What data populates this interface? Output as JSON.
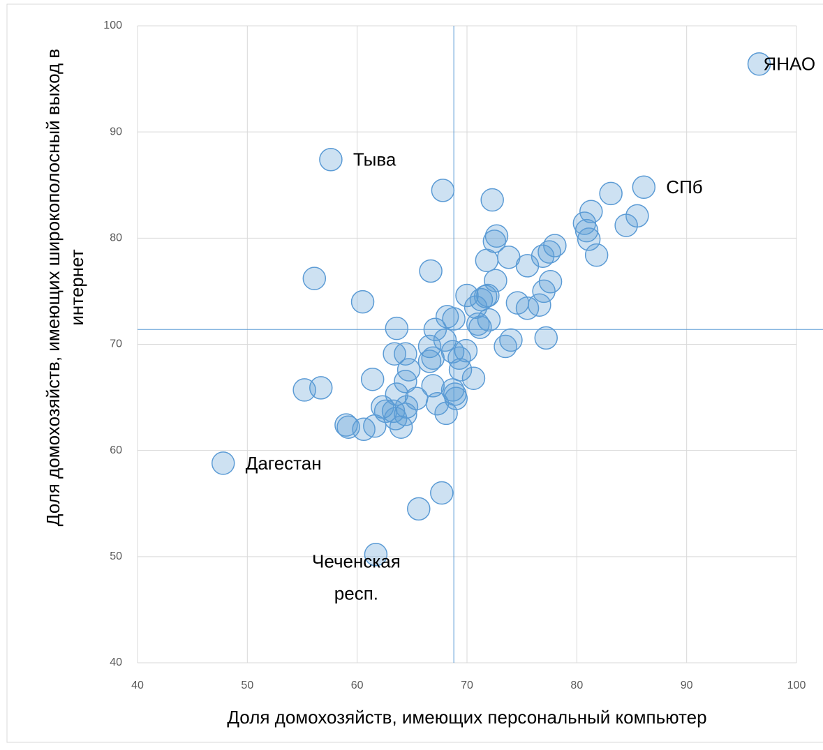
{
  "chart_data": {
    "type": "scatter",
    "xlabel": "Доля домохозяйств, имеющих персональный компьютер",
    "ylabel": [
      "Доля домохозяйств, имеющих широкополосный выход в",
      "интернет"
    ],
    "xlim": [
      40,
      100
    ],
    "xticks": [
      40,
      50,
      60,
      70,
      80,
      90,
      100
    ],
    "ylim": [
      40,
      100
    ],
    "yticks": [
      40,
      50,
      60,
      70,
      80,
      90,
      100
    ],
    "grid": true,
    "color": "#5b9bd5",
    "ref_lines": {
      "x": 68.8,
      "y": 71.4
    },
    "x": [
      96.6,
      57.6,
      86.1,
      47.8,
      61.7,
      67.8,
      72.3,
      83.1,
      81.3,
      85.5,
      80.7,
      84.5,
      80.9,
      72.7,
      72.5,
      81.1,
      78.0,
      77.5,
      76.9,
      81.8,
      73.8,
      71.8,
      75.5,
      66.7,
      56.1,
      77.6,
      72.6,
      77.0,
      70.0,
      71.7,
      71.9,
      71.3,
      60.5,
      74.6,
      76.6,
      75.5,
      70.8,
      68.2,
      68.8,
      72.0,
      71.0,
      71.2,
      63.6,
      67.1,
      68.0,
      77.2,
      74.0,
      73.5,
      69.9,
      66.6,
      68.7,
      64.4,
      63.4,
      66.9,
      66.6,
      69.3,
      69.4,
      64.7,
      70.6,
      61.4,
      64.4,
      66.9,
      68.7,
      68.9,
      69.0,
      55.2,
      56.7,
      63.6,
      65.4,
      67.3,
      64.5,
      62.3,
      63.3,
      62.6,
      64.4,
      68.1,
      63.5,
      59.0,
      59.2,
      61.6,
      60.6,
      64.0,
      65.6,
      67.7
    ],
    "y": [
      96.4,
      87.4,
      84.8,
      58.8,
      50.2,
      84.5,
      83.6,
      84.2,
      82.5,
      82.1,
      81.4,
      81.2,
      80.7,
      80.2,
      79.7,
      79.9,
      79.3,
      78.7,
      78.3,
      78.4,
      78.2,
      77.9,
      77.4,
      76.9,
      76.2,
      75.9,
      76.0,
      75.0,
      74.6,
      74.5,
      74.6,
      74.2,
      74.0,
      73.9,
      73.7,
      73.4,
      73.5,
      72.6,
      72.4,
      72.3,
      71.9,
      71.6,
      71.5,
      71.4,
      70.4,
      70.6,
      70.4,
      69.8,
      69.4,
      69.8,
      69.3,
      69.1,
      69.1,
      68.7,
      68.4,
      68.7,
      67.6,
      67.6,
      66.8,
      66.7,
      66.5,
      66.1,
      65.7,
      65.3,
      64.9,
      65.7,
      65.9,
      65.3,
      64.9,
      64.4,
      64.1,
      64.1,
      63.7,
      63.7,
      63.4,
      63.5,
      63.0,
      62.4,
      62.2,
      62.3,
      62.0,
      62.2,
      54.5,
      56.0
    ],
    "point_labels": [
      "ЯНАО",
      "Тыва",
      "СПб",
      "Дагестан",
      [
        "Чеченская",
        "респ."
      ],
      null,
      null,
      null,
      null,
      null,
      null,
      null,
      null,
      null,
      null,
      null,
      null,
      null,
      null,
      null,
      null,
      null,
      null,
      null,
      null,
      null,
      null,
      null,
      null,
      null,
      null,
      null,
      null,
      null,
      null,
      null,
      null,
      null,
      null,
      null,
      null,
      null,
      null,
      null,
      null,
      null,
      null,
      null,
      null,
      null,
      null,
      null,
      null,
      null,
      null,
      null,
      null,
      null,
      null,
      null,
      null,
      null,
      null,
      null,
      null,
      null,
      null,
      null,
      null,
      null,
      null,
      null,
      null,
      null,
      null,
      null,
      null,
      null,
      null,
      null,
      null,
      null,
      null,
      null
    ]
  }
}
